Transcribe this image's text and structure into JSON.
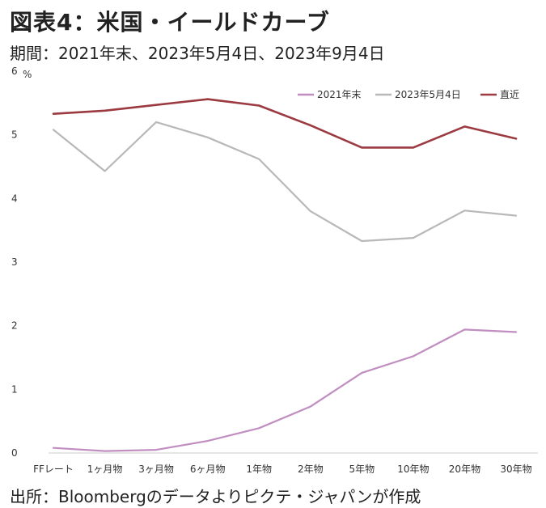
{
  "title": "図表4：米国・イールドカーブ",
  "subtitle": "期間：2021年末、2023年5月4日、2023年9月4日",
  "source": "出所：Bloombergのデータよりピクテ・ジャパンが作成",
  "chart_data": {
    "type": "line",
    "ylabel": "%",
    "ylim": [
      0,
      6
    ],
    "yticks": [
      0,
      1,
      2,
      3,
      4,
      5,
      6
    ],
    "grid": false,
    "legend_position": "top-right",
    "categories": [
      "FFレート",
      "1ヶ月物",
      "3ヶ月物",
      "6ヶ月物",
      "1年物",
      "2年物",
      "5年物",
      "10年物",
      "20年物",
      "30年物"
    ],
    "series": [
      {
        "name": "2021年末",
        "color": "#c08ec0",
        "values": [
          0.08,
          0.03,
          0.05,
          0.19,
          0.39,
          0.73,
          1.26,
          1.52,
          1.94,
          1.9
        ]
      },
      {
        "name": "2023年5月4日",
        "color": "#b8b8b8",
        "values": [
          5.08,
          4.43,
          5.2,
          4.96,
          4.62,
          3.8,
          3.33,
          3.38,
          3.81,
          3.73
        ]
      },
      {
        "name": "直近",
        "color": "#9b3a40",
        "values": [
          5.33,
          5.38,
          5.47,
          5.56,
          5.46,
          5.15,
          4.8,
          4.8,
          5.13,
          4.94
        ]
      }
    ]
  }
}
